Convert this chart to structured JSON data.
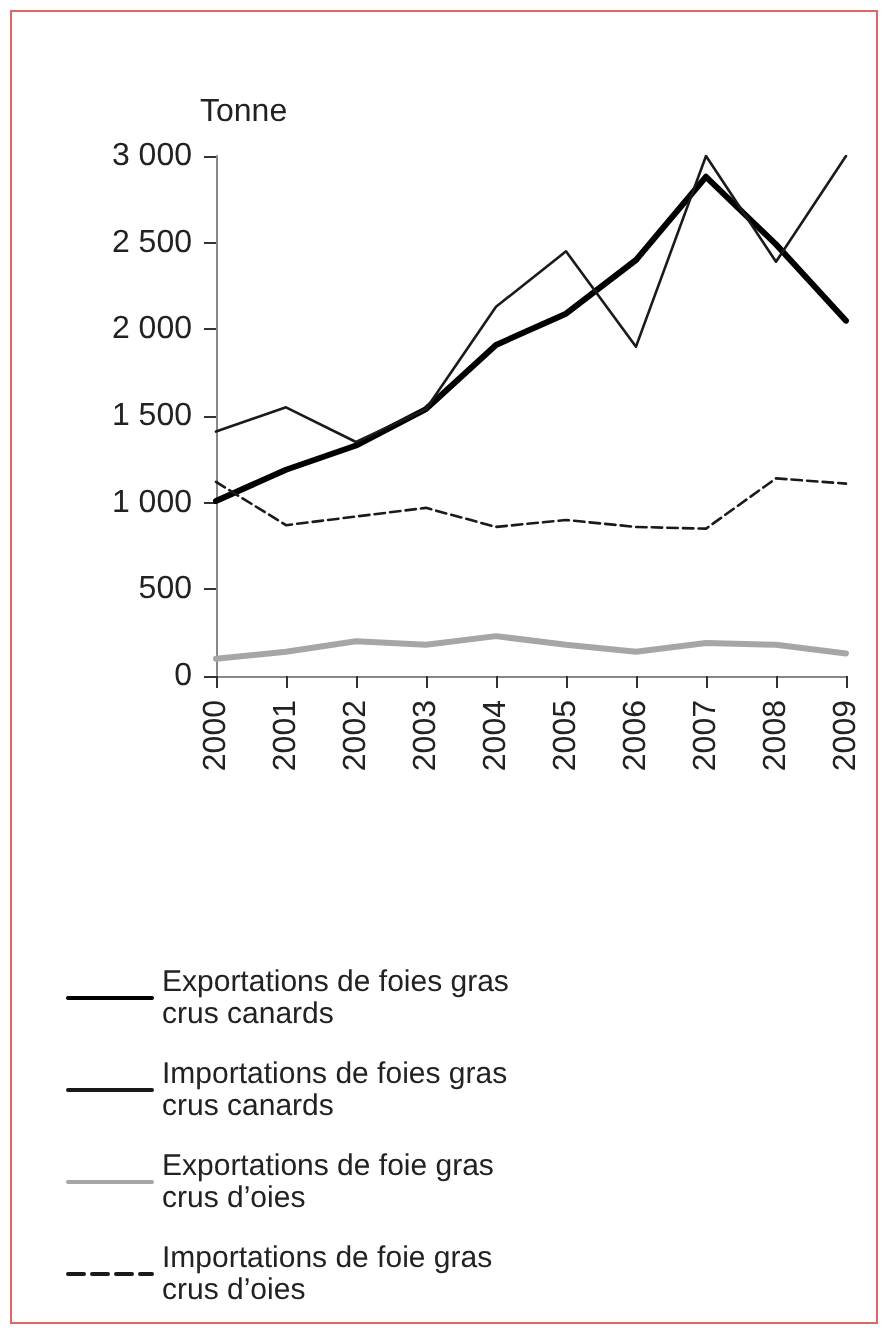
{
  "chart_data": {
    "type": "line",
    "ylabel": "Tonne",
    "categories": [
      "2000",
      "2001",
      "2002",
      "2003",
      "2004",
      "2005",
      "2006",
      "2007",
      "2008",
      "2009"
    ],
    "series": [
      {
        "name": "Exportations de foies gras crus canards",
        "color": "#000000",
        "values": [
          1010,
          1190,
          1330,
          1540,
          1910,
          2090,
          2400,
          2880,
          2490,
          2050
        ]
      },
      {
        "name": "Importations de foies gras crus canards",
        "color": "#1a1a1a",
        "values": [
          1410,
          1550,
          1350,
          1540,
          2130,
          2450,
          1900,
          3000,
          2390,
          3000
        ]
      },
      {
        "name": "Exportations de foie gras crus d’oies",
        "color": "#a6a6a6",
        "values": [
          100,
          140,
          200,
          180,
          230,
          180,
          140,
          190,
          180,
          130
        ]
      },
      {
        "name": "Importations de foie gras crus d’oies",
        "color": "#1a1a1a",
        "line_style": "dashed",
        "values": [
          1120,
          870,
          920,
          970,
          860,
          900,
          860,
          850,
          1140,
          1110
        ]
      }
    ],
    "ylim": [
      0,
      3000
    ],
    "yticks": [
      0,
      500,
      {
        "value": 1000,
        "label": "1 000"
      },
      {
        "value": 1500,
        "label": "1 500"
      },
      {
        "value": 2000,
        "label": "2 000"
      },
      {
        "value": 2500,
        "label": "2 500"
      },
      {
        "value": 3000,
        "label": "3 000"
      }
    ],
    "grid": false,
    "legend": "bottom",
    "marker": "none",
    "line_style": "solid"
  }
}
